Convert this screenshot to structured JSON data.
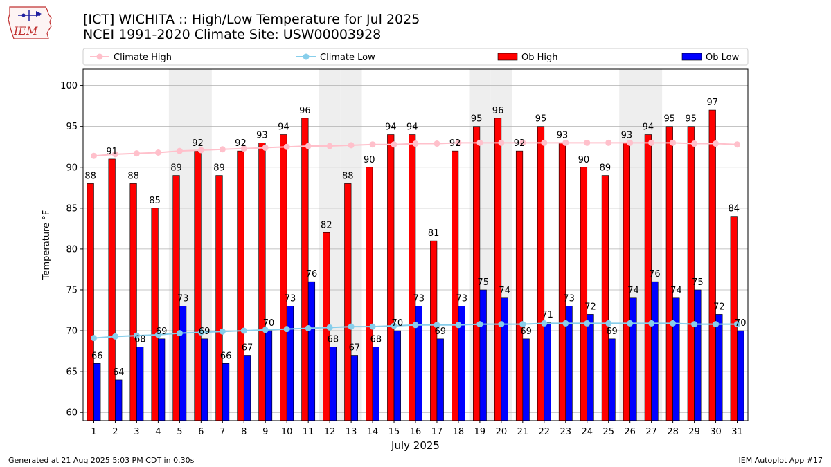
{
  "header": {
    "title_line1": "[ICT] WICHITA :: High/Low Temperature for Jul 2025",
    "title_line2": "NCEI 1991-2020 Climate Site: USW00003928",
    "logo_text": "IEM"
  },
  "footer": {
    "generated": "Generated at 21 Aug 2025 5:03 PM CDT in 0.30s",
    "app": "IEM Autoplot App #17"
  },
  "colors": {
    "ob_high": "#ff0000",
    "ob_low": "#0000ff",
    "climate_high": "#ffc0cb",
    "climate_low": "#87ceeb",
    "weekend_shade": "#eeeeee",
    "grid": "#b0b0b0"
  },
  "chart_data": {
    "type": "bar",
    "xlabel": "July 2025",
    "ylabel": "Temperature °F",
    "ylim": [
      59,
      102
    ],
    "yticks": [
      60,
      65,
      70,
      75,
      80,
      85,
      90,
      95,
      100
    ],
    "grid": "horizontal",
    "legend_position": "top",
    "categories": [
      "1",
      "2",
      "3",
      "4",
      "5",
      "6",
      "7",
      "8",
      "9",
      "10",
      "11",
      "12",
      "13",
      "14",
      "15",
      "16",
      "17",
      "18",
      "19",
      "20",
      "21",
      "22",
      "23",
      "24",
      "25",
      "26",
      "27",
      "28",
      "29",
      "30",
      "31"
    ],
    "shaded_days": [
      5,
      6,
      12,
      13,
      19,
      20,
      26,
      27
    ],
    "series": [
      {
        "name": "Climate High",
        "kind": "line",
        "values": [
          91.4,
          91.6,
          91.7,
          91.8,
          92.0,
          92.1,
          92.2,
          92.3,
          92.4,
          92.5,
          92.6,
          92.6,
          92.7,
          92.8,
          92.8,
          92.9,
          92.9,
          93.0,
          93.0,
          93.0,
          93.0,
          93.0,
          93.0,
          93.0,
          93.0,
          93.0,
          93.0,
          93.0,
          92.9,
          92.9,
          92.8
        ]
      },
      {
        "name": "Climate Low",
        "kind": "line",
        "values": [
          69.1,
          69.3,
          69.4,
          69.5,
          69.7,
          69.8,
          69.9,
          70.0,
          70.1,
          70.2,
          70.3,
          70.4,
          70.5,
          70.5,
          70.6,
          70.7,
          70.7,
          70.7,
          70.8,
          70.8,
          70.8,
          70.9,
          70.9,
          70.9,
          70.9,
          70.9,
          70.9,
          70.9,
          70.8,
          70.8,
          70.8
        ]
      },
      {
        "name": "Ob High",
        "kind": "bar",
        "values": [
          88,
          91,
          88,
          85,
          89,
          92,
          89,
          92,
          93,
          94,
          96,
          82,
          88,
          90,
          94,
          94,
          81,
          92,
          95,
          96,
          92,
          95,
          93,
          90,
          89,
          93,
          94,
          95,
          95,
          97,
          84
        ]
      },
      {
        "name": "Ob Low",
        "kind": "bar",
        "values": [
          66,
          64,
          68,
          69,
          73,
          69,
          66,
          67,
          70,
          73,
          76,
          68,
          67,
          68,
          70,
          73,
          69,
          73,
          75,
          74,
          69,
          71,
          73,
          72,
          69,
          74,
          76,
          74,
          75,
          72,
          70
        ]
      }
    ]
  }
}
